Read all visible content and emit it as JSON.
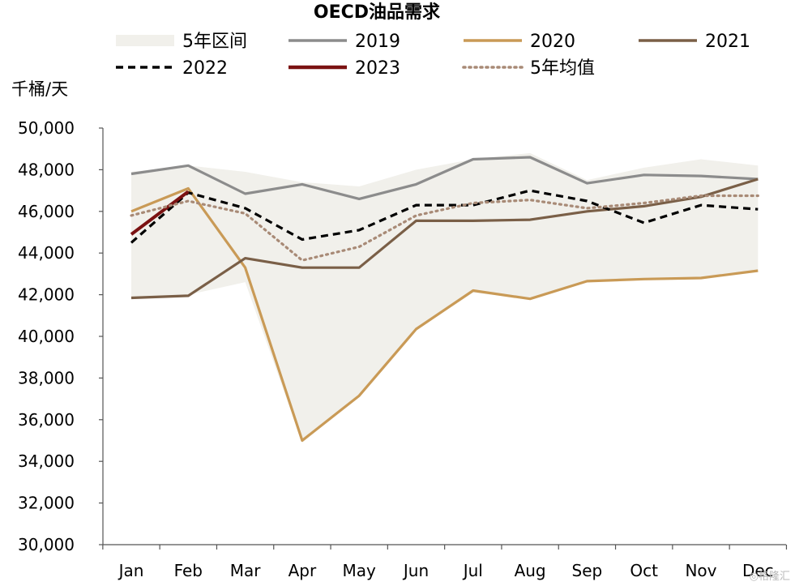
{
  "chart_data": {
    "type": "line",
    "title": "OECD油品需求",
    "ylabel": "千桶/天",
    "xlabel": "",
    "categories": [
      "Jan",
      "Feb",
      "Mar",
      "Apr",
      "May",
      "Jun",
      "Jul",
      "Aug",
      "Sep",
      "Oct",
      "Nov",
      "Dec"
    ],
    "ylim": [
      30000,
      50000
    ],
    "yticks": [
      30000,
      32000,
      34000,
      36000,
      38000,
      40000,
      42000,
      44000,
      46000,
      48000,
      50000
    ],
    "ytick_labels": [
      "30,000",
      "32,000",
      "34,000",
      "36,000",
      "38,000",
      "40,000",
      "42,000",
      "44,000",
      "46,000",
      "48,000",
      "50,000"
    ],
    "grid": false,
    "legend_position": "top",
    "range_band": {
      "name": "5年区间",
      "color": "#f1f0eb",
      "upper": [
        47900,
        48200,
        47900,
        47400,
        47200,
        48000,
        48500,
        48800,
        47500,
        48100,
        48500,
        48200
      ],
      "lower": [
        41800,
        42000,
        42600,
        34900,
        37100,
        40300,
        42100,
        41800,
        42600,
        42700,
        42800,
        43100
      ]
    },
    "series": [
      {
        "name": "2019",
        "color": "#8c8c8c",
        "style": "solid",
        "values": [
          47800,
          48200,
          46850,
          47300,
          46600,
          47300,
          48500,
          48600,
          47350,
          47750,
          47700,
          47550
        ]
      },
      {
        "name": "2020",
        "color": "#c99a56",
        "style": "solid",
        "values": [
          46000,
          47100,
          43300,
          35000,
          37150,
          40350,
          42200,
          41800,
          42650,
          42750,
          42800,
          43150
        ]
      },
      {
        "name": "2021",
        "color": "#7a5f47",
        "style": "solid",
        "values": [
          41850,
          41950,
          43750,
          43300,
          43300,
          45550,
          45550,
          45600,
          46000,
          46250,
          46700,
          47550
        ]
      },
      {
        "name": "2022",
        "color": "#000000",
        "style": "dashed",
        "values": [
          44500,
          46900,
          46150,
          44650,
          45100,
          46300,
          46300,
          47000,
          46500,
          45450,
          46300,
          46100
        ]
      },
      {
        "name": "2023",
        "color": "#7b1212",
        "style": "solid",
        "values": [
          44900,
          46950,
          null,
          null,
          null,
          null,
          null,
          null,
          null,
          null,
          null,
          null
        ]
      },
      {
        "name": "5年均值",
        "color": "#a88a76",
        "style": "dotted",
        "values": [
          45800,
          46500,
          45900,
          43650,
          44300,
          45800,
          46400,
          46550,
          46150,
          46400,
          46750,
          46750
        ]
      }
    ]
  }
}
